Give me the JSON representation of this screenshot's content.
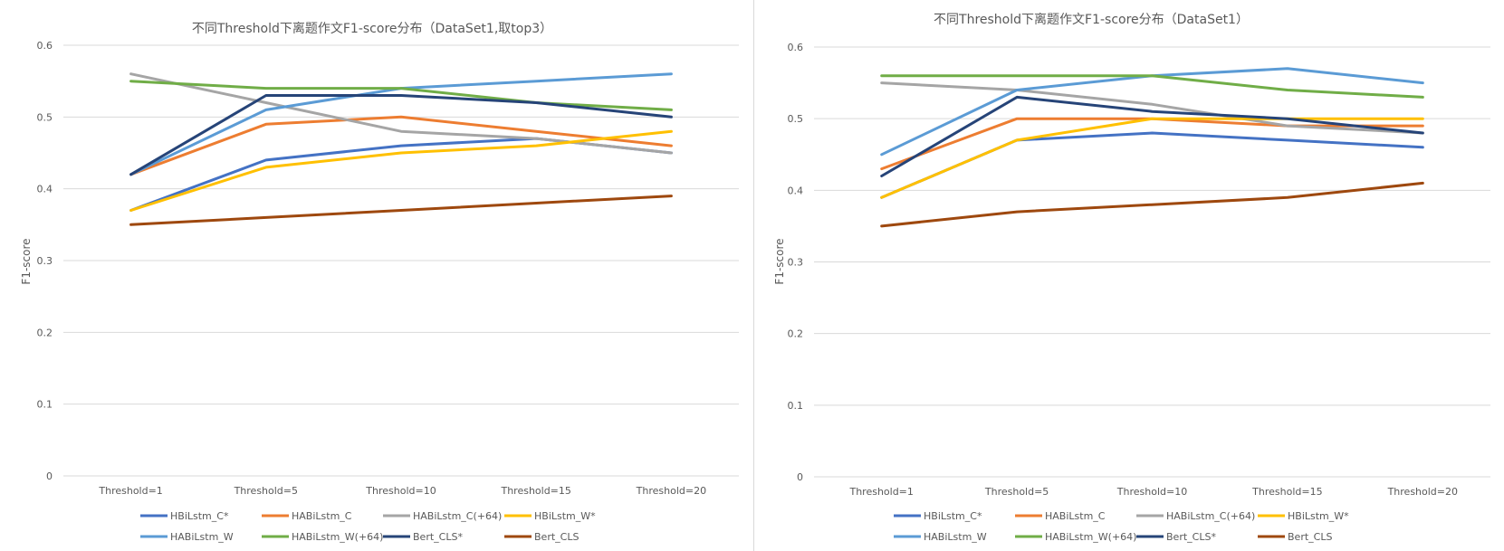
{
  "chart_data": [
    {
      "type": "line",
      "title": "不同Threshold下离题作文F1-score分布（DataSet1,取top3）",
      "xlabel": "",
      "ylabel": "F1-score",
      "ylim": [
        0,
        0.6
      ],
      "yticks": [
        "0",
        "0.1",
        "0.2",
        "0.3",
        "0.4",
        "0.5",
        "0.6"
      ],
      "grid": true,
      "legend_position": "bottom",
      "categories": [
        "Threshold=1",
        "Threshold=5",
        "Threshold=10",
        "Threshold=15",
        "Threshold=20"
      ],
      "series": [
        {
          "name": "HBiLstm_C*",
          "color": "#4472C4",
          "values": [
            0.37,
            0.44,
            0.46,
            0.47,
            0.45
          ]
        },
        {
          "name": "HABiLstm_C",
          "color": "#ED7D31",
          "values": [
            0.42,
            0.49,
            0.5,
            0.48,
            0.46
          ]
        },
        {
          "name": "HABiLstm_C(+64)",
          "color": "#A5A5A5",
          "values": [
            0.56,
            0.52,
            0.48,
            0.47,
            0.45
          ]
        },
        {
          "name": "HBiLstm_W*",
          "color": "#FFC000",
          "values": [
            0.37,
            0.43,
            0.45,
            0.46,
            0.48
          ]
        },
        {
          "name": "HABiLstm_W",
          "color": "#5B9BD5",
          "values": [
            0.42,
            0.51,
            0.54,
            0.55,
            0.56
          ]
        },
        {
          "name": "HABiLstm_W(+64)",
          "color": "#70AD47",
          "values": [
            0.55,
            0.54,
            0.54,
            0.52,
            0.51
          ]
        },
        {
          "name": "Bert_CLS*",
          "color": "#264478",
          "values": [
            0.42,
            0.53,
            0.53,
            0.52,
            0.5
          ]
        },
        {
          "name": "Bert_CLS",
          "color": "#9E480E",
          "values": [
            0.35,
            0.36,
            0.37,
            0.38,
            0.39
          ]
        }
      ]
    },
    {
      "type": "line",
      "title": "不同Threshold下离题作文F1-score分布（DataSet1）",
      "xlabel": "",
      "ylabel": "F1-score",
      "ylim": [
        0,
        0.6
      ],
      "yticks": [
        "0",
        "0.1",
        "0.2",
        "0.3",
        "0.4",
        "0.5",
        "0.6"
      ],
      "grid": true,
      "legend_position": "bottom",
      "categories": [
        "Threshold=1",
        "Threshold=5",
        "Threshold=10",
        "Threshold=15",
        "Threshold=20"
      ],
      "series": [
        {
          "name": "HBiLstm_C*",
          "color": "#4472C4",
          "values": [
            0.39,
            0.47,
            0.48,
            0.47,
            0.46
          ]
        },
        {
          "name": "HABiLstm_C",
          "color": "#ED7D31",
          "values": [
            0.43,
            0.5,
            0.5,
            0.49,
            0.49
          ]
        },
        {
          "name": "HABiLstm_C(+64)",
          "color": "#A5A5A5",
          "values": [
            0.55,
            0.54,
            0.52,
            0.49,
            0.48
          ]
        },
        {
          "name": "HBiLstm_W*",
          "color": "#FFC000",
          "values": [
            0.39,
            0.47,
            0.5,
            0.5,
            0.5
          ]
        },
        {
          "name": "HABiLstm_W",
          "color": "#5B9BD5",
          "values": [
            0.45,
            0.54,
            0.56,
            0.57,
            0.55
          ]
        },
        {
          "name": "HABiLstm_W(+64)",
          "color": "#70AD47",
          "values": [
            0.56,
            0.56,
            0.56,
            0.54,
            0.53
          ]
        },
        {
          "name": "Bert_CLS*",
          "color": "#264478",
          "values": [
            0.42,
            0.53,
            0.51,
            0.5,
            0.48
          ]
        },
        {
          "name": "Bert_CLS",
          "color": "#9E480E",
          "values": [
            0.35,
            0.37,
            0.38,
            0.39,
            0.41
          ]
        }
      ]
    }
  ]
}
